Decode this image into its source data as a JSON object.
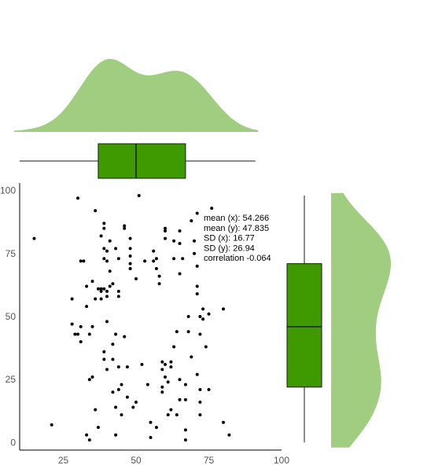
{
  "chart_data": {
    "type": "scatter",
    "title": "",
    "xlabel": "",
    "ylabel": "",
    "xlim": [
      10,
      100
    ],
    "ylim": [
      -3,
      103
    ],
    "x_ticks": [
      25,
      50,
      75,
      100
    ],
    "y_ticks": [
      0,
      25,
      50,
      75,
      100
    ],
    "grid": false,
    "colors": {
      "points": "#000000",
      "box_fill": "#3f9900",
      "box_stroke": "#1a1a1a",
      "density_fill": "#a0cd80"
    },
    "stats_labels": [
      "mean (x): 54.266",
      "mean (y): 47.835",
      "SD (x): 16.77",
      "SD (y): 26.94",
      "correlation -0.064"
    ],
    "marginal_x": {
      "box": {
        "whisker_low": 10,
        "q1": 37,
        "median": 50,
        "q3": 67,
        "whisker_high": 91
      },
      "density_peaks": [
        40,
        66
      ]
    },
    "marginal_y": {
      "box": {
        "whisker_low": 0,
        "q1": 22,
        "median": 46,
        "q3": 71,
        "whisker_high": 98
      },
      "density_peaks": [
        75,
        25
      ]
    },
    "points": [
      [
        15,
        81
      ],
      [
        21,
        7
      ],
      [
        28,
        57
      ],
      [
        28,
        47
      ],
      [
        29,
        43
      ],
      [
        30,
        97
      ],
      [
        30,
        43
      ],
      [
        31,
        72
      ],
      [
        31,
        46
      ],
      [
        31,
        40
      ],
      [
        32,
        72
      ],
      [
        33,
        62
      ],
      [
        33,
        54
      ],
      [
        33,
        3
      ],
      [
        34,
        43
      ],
      [
        34,
        25
      ],
      [
        34,
        1
      ],
      [
        35,
        64
      ],
      [
        35,
        46
      ],
      [
        35,
        26
      ],
      [
        36,
        92
      ],
      [
        36,
        57
      ],
      [
        36,
        13
      ],
      [
        37,
        6
      ],
      [
        37,
        61
      ],
      [
        38,
        61
      ],
      [
        38,
        60
      ],
      [
        38,
        57
      ],
      [
        38,
        82
      ],
      [
        39,
        87
      ],
      [
        39,
        85
      ],
      [
        39,
        61
      ],
      [
        39,
        36
      ],
      [
        39,
        33
      ],
      [
        39,
        77
      ],
      [
        39,
        73
      ],
      [
        40,
        72
      ],
      [
        40,
        76
      ],
      [
        40,
        60
      ],
      [
        40,
        58
      ],
      [
        40,
        48
      ],
      [
        40,
        29
      ],
      [
        41,
        80
      ],
      [
        41,
        68
      ],
      [
        41,
        62
      ],
      [
        42,
        39
      ],
      [
        42,
        20
      ],
      [
        42,
        33
      ],
      [
        42,
        63
      ],
      [
        43,
        14
      ],
      [
        43,
        3
      ],
      [
        43,
        43
      ],
      [
        43,
        77
      ],
      [
        44,
        30
      ],
      [
        44,
        21
      ],
      [
        44,
        73
      ],
      [
        44,
        60
      ],
      [
        44,
        58
      ],
      [
        45,
        11
      ],
      [
        45,
        23
      ],
      [
        46,
        85
      ],
      [
        46,
        86
      ],
      [
        46,
        42
      ],
      [
        47,
        18
      ],
      [
        47,
        30
      ],
      [
        48,
        74
      ],
      [
        48,
        69
      ],
      [
        48,
        71
      ],
      [
        48,
        77
      ],
      [
        48,
        81
      ],
      [
        49,
        14
      ],
      [
        50,
        16
      ],
      [
        50,
        65
      ],
      [
        51,
        98
      ],
      [
        52,
        31
      ],
      [
        53,
        72
      ],
      [
        54,
        23
      ],
      [
        55,
        2
      ],
      [
        55,
        8
      ],
      [
        56,
        76
      ],
      [
        56,
        72
      ],
      [
        57,
        69
      ],
      [
        57,
        73
      ],
      [
        57,
        6
      ],
      [
        58,
        66
      ],
      [
        58,
        63
      ],
      [
        59,
        22
      ],
      [
        59,
        32
      ],
      [
        59,
        20
      ],
      [
        59,
        29
      ],
      [
        60,
        26
      ],
      [
        60,
        31
      ],
      [
        60,
        81
      ],
      [
        60,
        84
      ],
      [
        60,
        85
      ],
      [
        61,
        11
      ],
      [
        61,
        24
      ],
      [
        62,
        30
      ],
      [
        62,
        13
      ],
      [
        62,
        32
      ],
      [
        63,
        80
      ],
      [
        63,
        73
      ],
      [
        63,
        38
      ],
      [
        64,
        11
      ],
      [
        64,
        44
      ],
      [
        65,
        17
      ],
      [
        65,
        25
      ],
      [
        65,
        67
      ],
      [
        65,
        84
      ],
      [
        65,
        79
      ],
      [
        66,
        73
      ],
      [
        67,
        17
      ],
      [
        67,
        5
      ],
      [
        67,
        1
      ],
      [
        67,
        23
      ],
      [
        68,
        50
      ],
      [
        68,
        44
      ],
      [
        69,
        34
      ],
      [
        69,
        88
      ],
      [
        70,
        80
      ],
      [
        70,
        75
      ],
      [
        71,
        91
      ],
      [
        71,
        70
      ],
      [
        71,
        62
      ],
      [
        71,
        59
      ],
      [
        71,
        27
      ],
      [
        72,
        50
      ],
      [
        72,
        43
      ],
      [
        72,
        11
      ],
      [
        72,
        21
      ],
      [
        72,
        16
      ],
      [
        73,
        53
      ],
      [
        73,
        49
      ],
      [
        74,
        81
      ],
      [
        74,
        38
      ],
      [
        75,
        21
      ],
      [
        75,
        51
      ],
      [
        76,
        93
      ],
      [
        80,
        53
      ],
      [
        80,
        8
      ],
      [
        82,
        3
      ]
    ]
  }
}
